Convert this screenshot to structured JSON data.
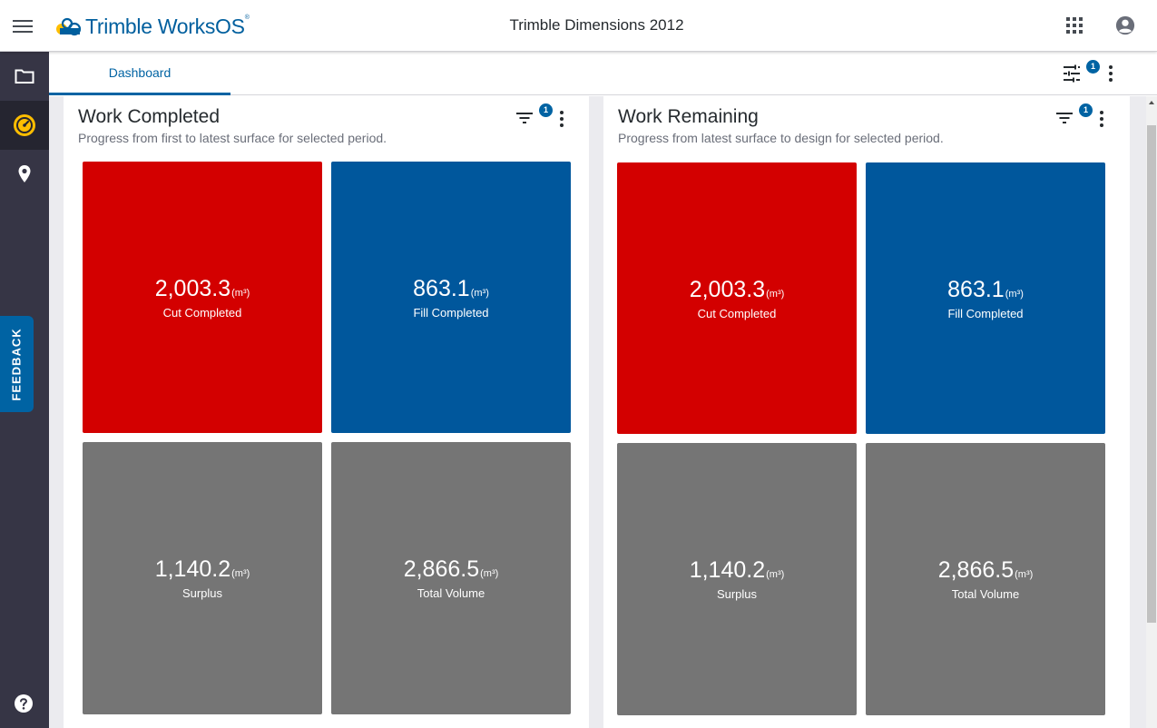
{
  "app": {
    "brand_name": "Trimble",
    "brand_product": "WorksOS",
    "brand_mark": "®",
    "project_title": "Trimble Dimensions 2012",
    "icons": {
      "menu": "hamburger-menu-icon",
      "apps": "apps-grid-icon",
      "account": "account-circle-icon"
    }
  },
  "sidebar": {
    "items": [
      {
        "name": "projects",
        "icon": "folder-icon",
        "active": false
      },
      {
        "name": "dashboard",
        "icon": "speedometer-icon",
        "active": true
      },
      {
        "name": "map",
        "icon": "map-pin-icon",
        "active": false
      }
    ],
    "feedback_label": "FEEDBACK",
    "help_icon": "help-icon"
  },
  "tabs": {
    "items": [
      {
        "label": "Dashboard",
        "active": true
      }
    ],
    "filter_count": "1"
  },
  "widgets": [
    {
      "title": "Work Completed",
      "subtitle": "Progress from first to latest surface for selected period.",
      "filter_count": "1",
      "tiles": [
        {
          "value": "2,003.3",
          "unit": "(m³)",
          "label": "Cut Completed",
          "color": "#d30000"
        },
        {
          "value": "863.1",
          "unit": "(m³)",
          "label": "Fill Completed",
          "color": "#00579c"
        },
        {
          "value": "1,140.2",
          "unit": "(m³)",
          "label": "Surplus",
          "color": "#757575"
        },
        {
          "value": "2,866.5",
          "unit": "(m³)",
          "label": "Total Volume",
          "color": "#757575"
        }
      ]
    },
    {
      "title": "Work Remaining",
      "subtitle": "Progress from latest surface to design for selected period.",
      "filter_count": "1",
      "tiles": [
        {
          "value": "2,003.3",
          "unit": "(m³)",
          "label": "Cut Completed",
          "color": "#d30000"
        },
        {
          "value": "863.1",
          "unit": "(m³)",
          "label": "Fill Completed",
          "color": "#00579c"
        },
        {
          "value": "1,140.2",
          "unit": "(m³)",
          "label": "Surplus",
          "color": "#757575"
        },
        {
          "value": "2,866.5",
          "unit": "(m³)",
          "label": "Total Volume",
          "color": "#757575"
        }
      ]
    }
  ],
  "colors": {
    "accent": "#0063a3",
    "rail": "#363545",
    "cut": "#d30000",
    "fill": "#00579c",
    "neutral_tile": "#757575"
  }
}
